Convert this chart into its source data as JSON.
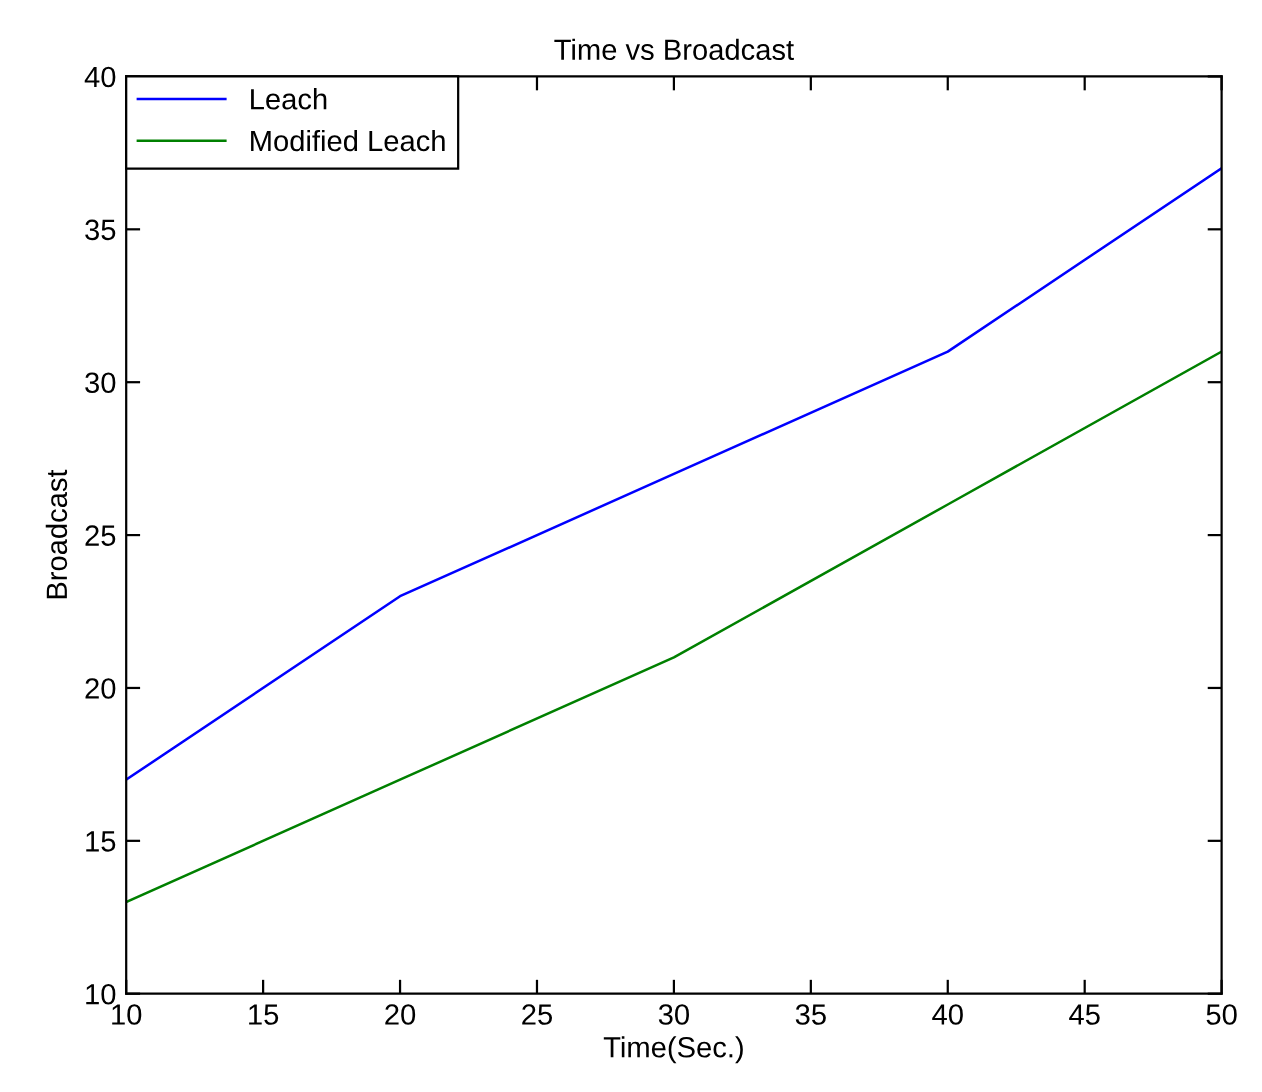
{
  "chart_data": {
    "type": "line",
    "title": "Time vs Broadcast",
    "xlabel": "Time(Sec.)",
    "ylabel": "Broadcast",
    "x": [
      10,
      20,
      30,
      40,
      50
    ],
    "series": [
      {
        "name": "Leach",
        "color": "#0000ff",
        "values": [
          17,
          23,
          27,
          31,
          37
        ]
      },
      {
        "name": "Modified Leach",
        "color": "#008000",
        "values": [
          13,
          17,
          21,
          26,
          31
        ]
      }
    ],
    "xlim": [
      10,
      50
    ],
    "ylim": [
      10,
      40
    ],
    "xticks": [
      10,
      15,
      20,
      25,
      30,
      35,
      40,
      45,
      50
    ],
    "yticks": [
      10,
      15,
      20,
      25,
      30,
      35,
      40
    ],
    "grid": false,
    "legend": "top left",
    "marker": "none",
    "line_style": "solid"
  }
}
